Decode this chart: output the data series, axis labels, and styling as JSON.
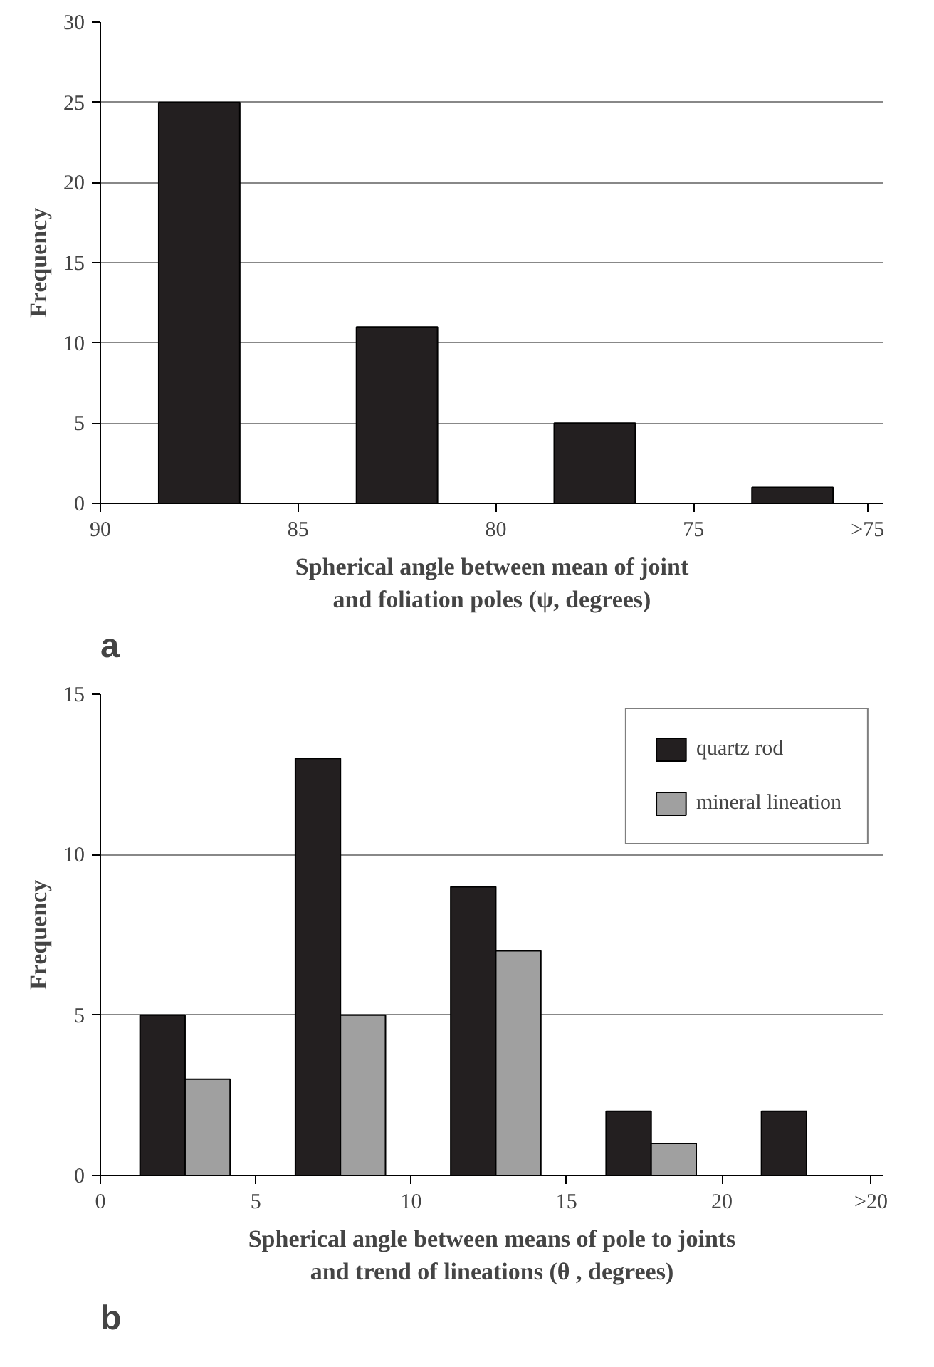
{
  "chart_data": [
    {
      "type": "bar",
      "xlabel": "Spherical angle between mean of joint\nand foliation poles (ψ, degrees)",
      "ylabel": "Frequency",
      "annotations": [
        "a"
      ],
      "x": [
        87.5,
        82.5,
        77.5,
        72.5
      ],
      "series": [
        {
          "color": "#231f20",
          "values": [
            25,
            11,
            5,
            1
          ]
        }
      ],
      "xlim": [
        90,
        70.2
      ],
      "xticks": [
        90,
        85,
        80,
        75,
        {
          "value": 70.6,
          "label": ">75"
        }
      ],
      "ylim": [
        0,
        30
      ],
      "yticks": [
        0,
        5,
        10,
        15,
        20,
        25,
        30
      ],
      "grid": "y",
      "legend": false
    },
    {
      "type": "bar",
      "xlabel": "Spherical angle between means of pole to joints\nand trend of lineations (θ , degrees)",
      "ylabel": "Frequency",
      "annotations": [
        "b"
      ],
      "series": [
        {
          "name": "quartz rod",
          "color": "#231f20",
          "x": [
            2,
            7,
            12,
            17,
            22
          ],
          "values": [
            5,
            13,
            9,
            2,
            2
          ]
        },
        {
          "name": "mineral lineation",
          "color": "#a0a0a0",
          "x": [
            3.45,
            8.45,
            13.45,
            18.45
          ],
          "values": [
            3,
            5,
            7,
            1
          ]
        }
      ],
      "xlim": [
        0,
        25.2
      ],
      "xticks": [
        0,
        5,
        10,
        15,
        20,
        {
          "value": 24.8,
          "label": ">20"
        }
      ],
      "ylim": [
        0,
        15
      ],
      "yticks": [
        0,
        5,
        10,
        15
      ],
      "grid": "y",
      "legend": "top right"
    }
  ]
}
